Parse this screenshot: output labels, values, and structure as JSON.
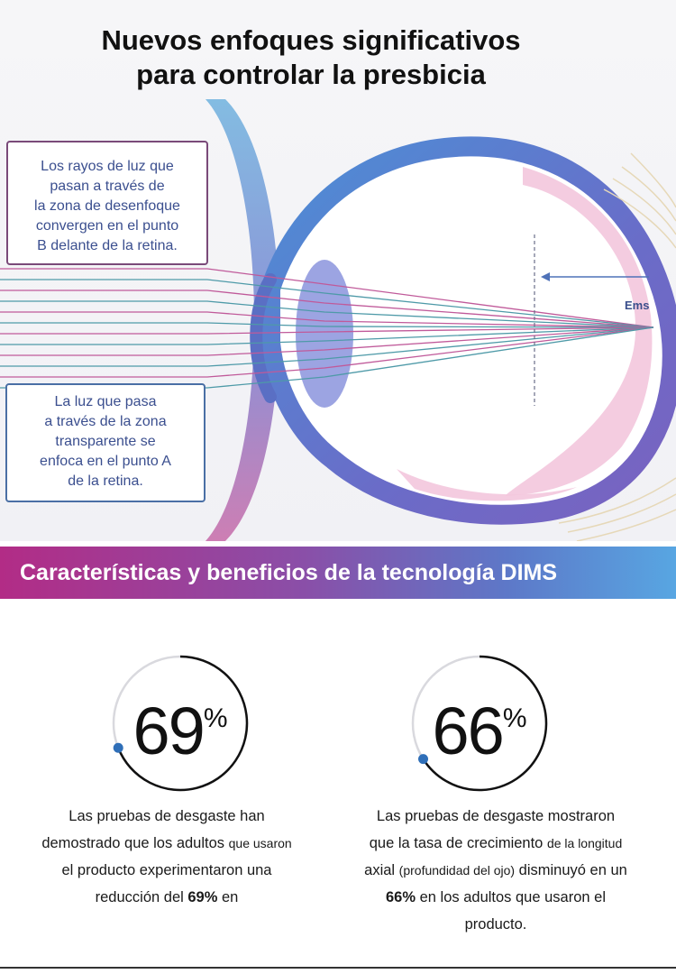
{
  "header": {
    "title_line1": "Nuevos enfoques significativos",
    "title_line2": "para controlar la presbicia"
  },
  "diagram": {
    "callout_top": [
      "Los rayos de luz que",
      "pasan a través de",
      "la zona de desenfoque",
      "convergen en el punto",
      "B delante de la retina."
    ],
    "callout_bottom": [
      "La luz que pasa",
      "a través de la zona",
      "transparente se",
      "enfoca en el punto A",
      "de la retina."
    ],
    "label_ems": "Ems",
    "colors": {
      "eye_wall": "#5a6fc4",
      "eye_pink": "#f3c6dd",
      "ray_pink": "#c05a9a",
      "ray_teal": "#4e9aa8",
      "lens": "#6e7fd0"
    }
  },
  "banner": {
    "text": "Características y beneficios de la tecnología DIMS"
  },
  "stats": [
    {
      "value": "69",
      "unit": "%",
      "progress": 0.69,
      "desc": {
        "l1": "Las pruebas de desgaste han",
        "l2a": "demostrado que los adultos ",
        "l2b": "que usaron",
        "l3": "el producto experimentaron una",
        "l4a": "reducción del ",
        "l4b": "69%",
        "l4c": " en"
      }
    },
    {
      "value": "66",
      "unit": "%",
      "progress": 0.66,
      "desc": {
        "l1": "Las pruebas de desgaste mostraron",
        "l2a": "que la tasa de crecimiento ",
        "l2b": "de la longitud",
        "l3a": "axial ",
        "l3b": "(profundidad del ojo)",
        "l3c": " disminuyó en un",
        "l4a": "66%",
        "l4b": " en los adultos que usaron el",
        "l5": "producto."
      }
    }
  ]
}
